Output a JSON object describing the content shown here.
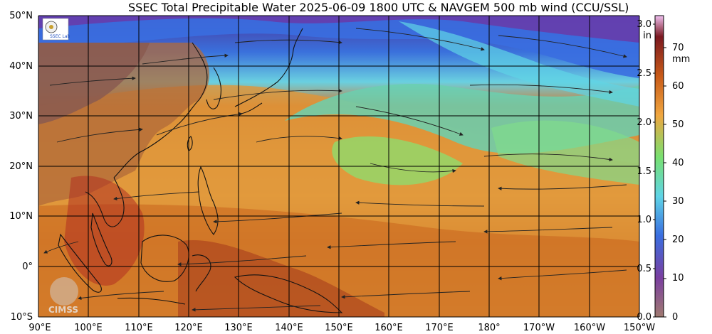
{
  "title": "SSEC Total Precipitable Water  2025-06-09 1800 UTC & NAVGEM 500 mb wind (CCU/SSL)",
  "map": {
    "lat_labels": [
      "50°N",
      "40°N",
      "30°N",
      "20°N",
      "10°N",
      "0°",
      "10°S"
    ],
    "lon_labels": [
      "90°E",
      "100°E",
      "110°E",
      "120°E",
      "130°E",
      "140°E",
      "150°E",
      "160°E",
      "170°E",
      "180°",
      "170°W",
      "160°W",
      "150°W"
    ],
    "watermark": "CIMSS",
    "logo": "SSEC Lab"
  },
  "colorbar": {
    "inch_unit": "in",
    "mm_unit": "mm",
    "inch_ticks": [
      "0.0",
      "0.5",
      "1.0",
      "1.5",
      "2.0",
      "2.5",
      "3.0"
    ],
    "mm_ticks": [
      "0",
      "10",
      "20",
      "30",
      "40",
      "50",
      "60",
      "70"
    ],
    "colors": {
      "c0": "#a07a70",
      "c10": "#7a3fa0",
      "c20": "#3a6ee0",
      "c30": "#5fd4e6",
      "c40": "#78e070",
      "c50": "#f0a640",
      "c60": "#c85a18",
      "c70": "#7a1820",
      "c75": "#f0c0f0"
    }
  }
}
